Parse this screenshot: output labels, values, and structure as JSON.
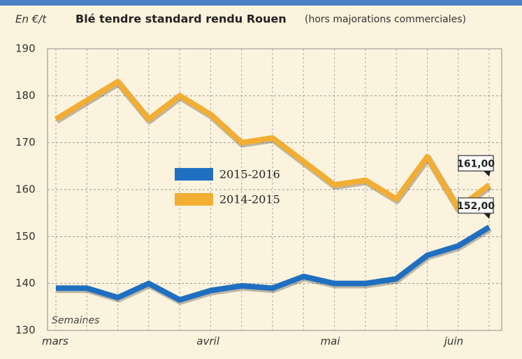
{
  "chart_data": {
    "type": "line",
    "unit_label": "En €/t",
    "title": "Blé tendre standard rendu Rouen",
    "subtitle": "(hors majorations commerciales)",
    "annotation": "Semaines",
    "categories": [
      "mars",
      null,
      null,
      null,
      null,
      "avril",
      null,
      null,
      null,
      "mai",
      null,
      null,
      null,
      "juin",
      null
    ],
    "series": [
      {
        "name": "2015-2016",
        "color": "#1f6fc0",
        "values": [
          139,
          139,
          137,
          140,
          136.5,
          138.5,
          139.5,
          139,
          141.5,
          140,
          140,
          141,
          146,
          148,
          152
        ],
        "value_labels": [
          null,
          null,
          null,
          null,
          null,
          null,
          null,
          null,
          null,
          null,
          null,
          null,
          null,
          null,
          "152,00"
        ]
      },
      {
        "name": "2014-2015",
        "color": "#f2ae33",
        "values": [
          175,
          179,
          183,
          175,
          180,
          176,
          170,
          171,
          166,
          161,
          162,
          158,
          167,
          156,
          161
        ],
        "value_labels": [
          null,
          null,
          null,
          null,
          null,
          null,
          null,
          null,
          null,
          null,
          null,
          null,
          null,
          null,
          "161,00"
        ]
      }
    ],
    "ylim": [
      130,
      190
    ],
    "yticks": [
      130,
      140,
      150,
      160,
      170,
      180,
      190
    ],
    "grid": true
  }
}
